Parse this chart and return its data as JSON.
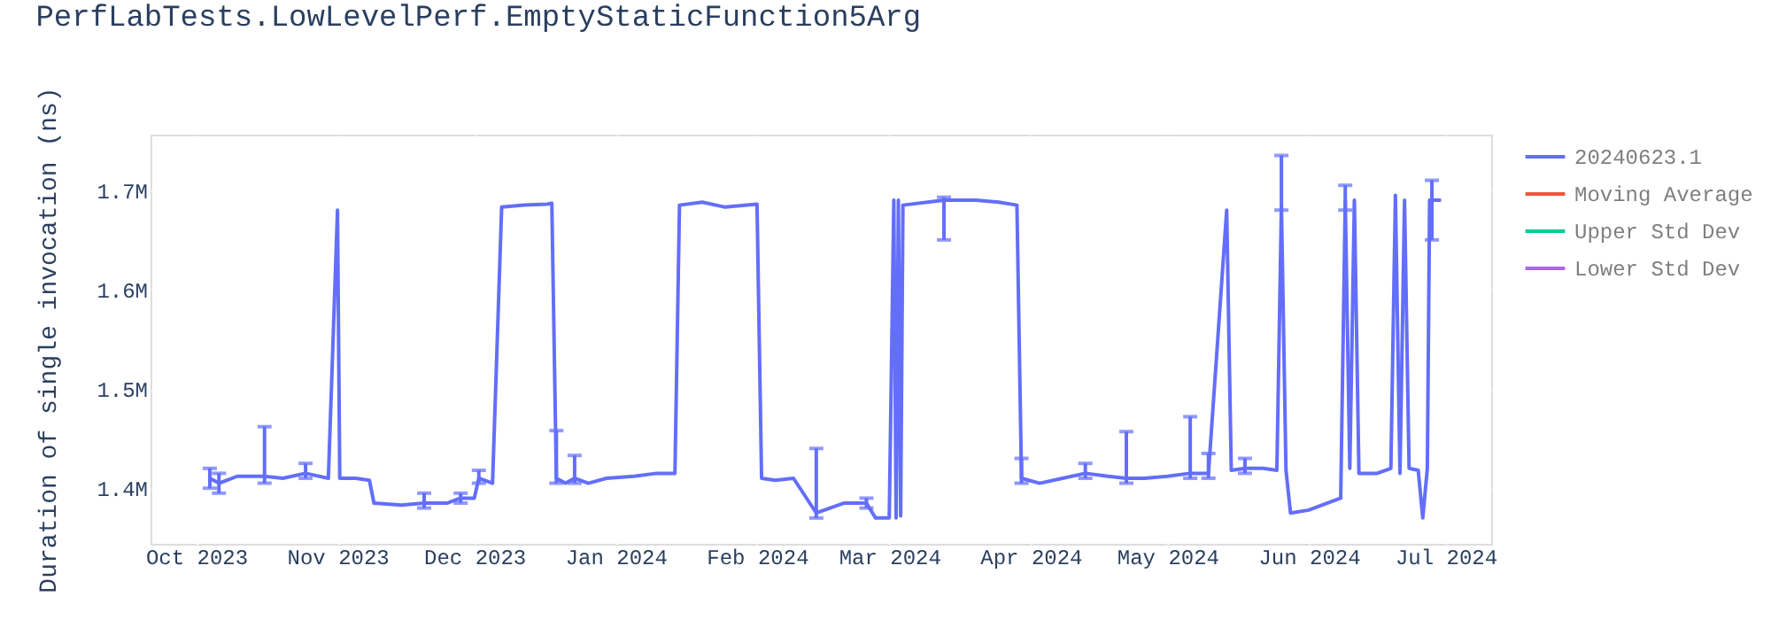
{
  "chart_data": {
    "type": "line",
    "title": "PerfLabTests.LowLevelPerf.EmptyStaticFunction5Arg",
    "ylabel": "Duration of single invocation (ns)",
    "x": [
      "2023-10-04",
      "2023-10-06",
      "2023-10-10",
      "2023-10-16",
      "2023-10-20",
      "2023-10-25",
      "2023-10-30",
      "2023-11-01",
      "2023-11-01T12:00",
      "2023-11-05",
      "2023-11-08",
      "2023-11-09",
      "2023-11-15",
      "2023-11-20",
      "2023-11-25",
      "2023-11-28",
      "2023-12-01",
      "2023-12-02",
      "2023-12-05",
      "2023-12-07",
      "2023-12-12",
      "2023-12-17",
      "2023-12-18",
      "2023-12-19",
      "2023-12-21",
      "2023-12-23",
      "2023-12-26",
      "2023-12-30",
      "2024-01-05",
      "2024-01-10",
      "2024-01-14",
      "2024-01-15",
      "2024-01-20",
      "2024-01-25",
      "2024-02-01",
      "2024-02-02",
      "2024-02-05",
      "2024-02-09",
      "2024-02-14",
      "2024-02-17",
      "2024-02-20",
      "2024-02-25",
      "2024-02-27",
      "2024-03-01",
      "2024-03-02",
      "2024-03-02T12:00",
      "2024-03-03",
      "2024-03-03T12:00",
      "2024-03-04",
      "2024-03-13",
      "2024-03-20",
      "2024-03-25",
      "2024-03-29",
      "2024-03-30",
      "2024-04-03",
      "2024-04-08",
      "2024-04-13",
      "2024-04-18",
      "2024-04-22",
      "2024-04-26",
      "2024-05-01",
      "2024-05-06",
      "2024-05-10",
      "2024-05-14",
      "2024-05-15",
      "2024-05-18",
      "2024-05-22",
      "2024-05-25",
      "2024-05-26",
      "2024-05-27",
      "2024-05-28",
      "2024-06-01",
      "2024-06-05",
      "2024-06-08",
      "2024-06-09",
      "2024-06-10",
      "2024-06-11",
      "2024-06-12",
      "2024-06-16",
      "2024-06-19",
      "2024-06-20",
      "2024-06-21",
      "2024-06-22",
      "2024-06-23",
      "2024-06-25",
      "2024-06-26",
      "2024-06-27",
      "2024-06-27T12:00",
      "2024-06-28",
      "2024-06-30"
    ],
    "series": [
      {
        "name": "20240623.1",
        "color": "#636efa",
        "values": [
          1410000,
          1405000,
          1412000,
          1412000,
          1410000,
          1415000,
          1410000,
          1680000,
          1410000,
          1410000,
          1408000,
          1385000,
          1383000,
          1385000,
          1385000,
          1390000,
          1390000,
          1410000,
          1405000,
          1683000,
          1685000,
          1686000,
          1687000,
          1410000,
          1405000,
          1410000,
          1405000,
          1410000,
          1412000,
          1415000,
          1415000,
          1685000,
          1688000,
          1683000,
          1686000,
          1410000,
          1408000,
          1410000,
          1375000,
          1380000,
          1385000,
          1385000,
          1370000,
          1370000,
          1690000,
          1370000,
          1690000,
          1372000,
          1685000,
          1690000,
          1690000,
          1688000,
          1685000,
          1410000,
          1405000,
          1410000,
          1415000,
          1412000,
          1410000,
          1410000,
          1412000,
          1415000,
          1415000,
          1680000,
          1418000,
          1420000,
          1420000,
          1418000,
          1685000,
          1418000,
          1375000,
          1378000,
          1385000,
          1390000,
          1690000,
          1420000,
          1690000,
          1415000,
          1415000,
          1420000,
          1695000,
          1415000,
          1690000,
          1420000,
          1418000,
          1370000,
          1420000,
          1690000,
          1690000,
          1690000
        ],
        "errors": [
          10000,
          10000,
          null,
          [
            1405000,
            1462000
          ],
          null,
          [
            1410000,
            1425000
          ],
          null,
          null,
          null,
          null,
          null,
          null,
          null,
          [
            1380000,
            1395000
          ],
          null,
          [
            1385000,
            1395000
          ],
          null,
          [
            1405000,
            1418000
          ],
          null,
          null,
          null,
          null,
          null,
          [
            1405000,
            1458000
          ],
          null,
          [
            1405000,
            1433000
          ],
          null,
          null,
          null,
          null,
          null,
          null,
          null,
          null,
          null,
          null,
          null,
          null,
          [
            1370000,
            1440000
          ],
          null,
          null,
          [
            1380000,
            1390000
          ],
          null,
          null,
          null,
          null,
          null,
          null,
          null,
          [
            1650000,
            1693000
          ],
          null,
          null,
          null,
          [
            1405000,
            1430000
          ],
          null,
          null,
          [
            1410000,
            1425000
          ],
          null,
          [
            1405000,
            1457000
          ],
          null,
          null,
          [
            1410000,
            1472000
          ],
          [
            1410000,
            1435000
          ],
          null,
          null,
          [
            1415000,
            1430000
          ],
          null,
          null,
          [
            1680000,
            1735000
          ],
          null,
          null,
          null,
          null,
          null,
          [
            1680000,
            1705000
          ],
          null,
          null,
          null,
          null,
          null,
          null,
          null,
          null,
          null,
          null,
          null,
          null,
          null,
          [
            1650000,
            1710000
          ],
          null
        ]
      },
      {
        "name": "Moving Average",
        "color": "#ef553b",
        "values": [
          null,
          null,
          null,
          null,
          null,
          null,
          null,
          null,
          null,
          null,
          null,
          null,
          null,
          null,
          null,
          null,
          null,
          null,
          null,
          null,
          null,
          null,
          null,
          null,
          null,
          null,
          null,
          null,
          null,
          null,
          null,
          null,
          null,
          null,
          null,
          null,
          null,
          null,
          null,
          null,
          null,
          null,
          null,
          null,
          null,
          null,
          null,
          null,
          null,
          null,
          null,
          null,
          null,
          null,
          null,
          null,
          null,
          null,
          null,
          null,
          null,
          null,
          null,
          null,
          null,
          null,
          null,
          null,
          null,
          null,
          null,
          null,
          null,
          null,
          null,
          null,
          null,
          null,
          null,
          null,
          null,
          null,
          null,
          null,
          null,
          null,
          null,
          null,
          null,
          null
        ]
      },
      {
        "name": "Upper Std Dev",
        "color": "#00cc96",
        "values": [
          null,
          null,
          null,
          null,
          null,
          null,
          null,
          null,
          null,
          null,
          null,
          null,
          null,
          null,
          null,
          null,
          null,
          null,
          null,
          null,
          null,
          null,
          null,
          null,
          null,
          null,
          null,
          null,
          null,
          null,
          null,
          null,
          null,
          null,
          null,
          null,
          null,
          null,
          null,
          null,
          null,
          null,
          null,
          null,
          null,
          null,
          null,
          null,
          null,
          null,
          null,
          null,
          null,
          null,
          null,
          null,
          null,
          null,
          null,
          null,
          null,
          null,
          null,
          null,
          null,
          null,
          null,
          null,
          null,
          null,
          null,
          null,
          null,
          null,
          null,
          null,
          null,
          null,
          null,
          null,
          null,
          null,
          null,
          null,
          null,
          null,
          null,
          null,
          null,
          null
        ]
      },
      {
        "name": "Lower Std Dev",
        "color": "#ab63fa",
        "values": [
          null,
          null,
          null,
          null,
          null,
          null,
          null,
          null,
          null,
          null,
          null,
          null,
          null,
          null,
          null,
          null,
          null,
          null,
          null,
          null,
          null,
          null,
          null,
          null,
          null,
          null,
          null,
          null,
          null,
          null,
          null,
          null,
          null,
          null,
          null,
          null,
          null,
          null,
          null,
          null,
          null,
          null,
          null,
          null,
          null,
          null,
          null,
          null,
          null,
          null,
          null,
          null,
          null,
          null,
          null,
          null,
          null,
          null,
          null,
          null,
          null,
          null,
          null,
          null,
          null,
          null,
          null,
          null,
          null,
          null,
          null,
          null,
          null,
          null,
          null,
          null,
          null,
          null,
          null,
          null,
          null,
          null,
          null,
          null,
          null,
          null,
          null,
          null,
          null,
          null
        ]
      }
    ],
    "xlim": [
      "2023-09-21",
      "2024-07-11"
    ],
    "xticks": [
      {
        "value": "2023-10-01",
        "label": "Oct 2023"
      },
      {
        "value": "2023-11-01",
        "label": "Nov 2023"
      },
      {
        "value": "2023-12-01",
        "label": "Dec 2023"
      },
      {
        "value": "2024-01-01",
        "label": "Jan 2024"
      },
      {
        "value": "2024-02-01",
        "label": "Feb 2024"
      },
      {
        "value": "2024-03-01",
        "label": "Mar 2024"
      },
      {
        "value": "2024-04-01",
        "label": "Apr 2024"
      },
      {
        "value": "2024-05-01",
        "label": "May 2024"
      },
      {
        "value": "2024-06-01",
        "label": "Jun 2024"
      },
      {
        "value": "2024-07-01",
        "label": "Jul 2024"
      }
    ],
    "ylim": [
      1344000,
      1756000
    ],
    "yticks": [
      {
        "value": 1400000,
        "label": "1.4M"
      },
      {
        "value": 1500000,
        "label": "1.5M"
      },
      {
        "value": 1600000,
        "label": "1.6M"
      },
      {
        "value": 1700000,
        "label": "1.7M"
      }
    ],
    "grid": true,
    "legend": "top right",
    "marker": "none",
    "line_style": "solid"
  }
}
